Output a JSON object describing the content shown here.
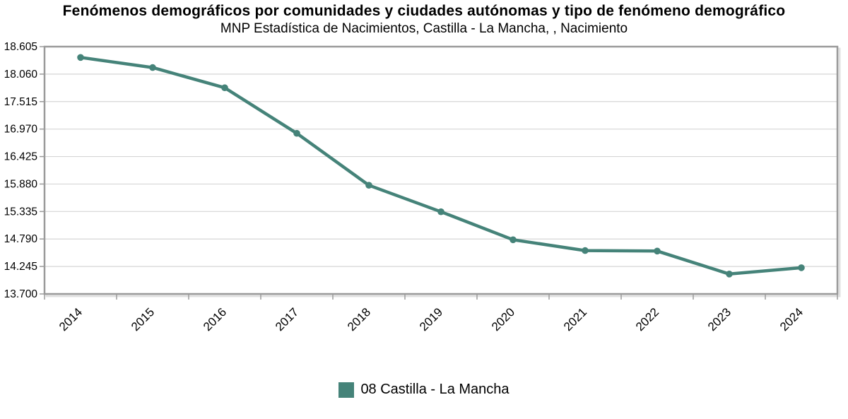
{
  "header": {
    "title": "Fenómenos demográficos por comunidades y ciudades autónomas y tipo de fenómeno demográfico",
    "subtitle": "MNP Estadística de Nacimientos, Castilla - La Mancha, , Nacimiento"
  },
  "chart_data": {
    "type": "line",
    "title": "Fenómenos demográficos por comunidades y ciudades autónomas y tipo de fenómeno demográfico",
    "subtitle": "MNP Estadística de Nacimientos, Castilla - La Mancha, , Nacimiento",
    "categories": [
      "2014",
      "2015",
      "2016",
      "2017",
      "2018",
      "2019",
      "2020",
      "2021",
      "2022",
      "2023",
      "2024"
    ],
    "series": [
      {
        "name": "08 Castilla - La Mancha",
        "values": [
          18390,
          18190,
          17790,
          16885,
          15855,
          15330,
          14775,
          14560,
          14550,
          14095,
          14220
        ],
        "color": "#458379",
        "marker": "circle"
      }
    ],
    "xlabel": "",
    "ylabel": "",
    "ylim": [
      13700,
      18605
    ],
    "ytick_labels": [
      "18.605",
      "18.060",
      "17.515",
      "16.970",
      "16.425",
      "15.880",
      "15.335",
      "14.790",
      "14.245",
      "13.700"
    ],
    "ytick_values": [
      18605,
      18060,
      17515,
      16970,
      16425,
      15880,
      15335,
      14790,
      14245,
      13700
    ],
    "grid": "horizontal",
    "legend_position": "bottom",
    "colors": {
      "series": "#458379",
      "grid_line": "#d6d6d6",
      "plot_border": "#9a9a9a",
      "text": "#000000",
      "background": "#ffffff"
    }
  },
  "legend": {
    "items": [
      {
        "label": "08 Castilla - La Mancha",
        "color": "#458379"
      }
    ]
  }
}
